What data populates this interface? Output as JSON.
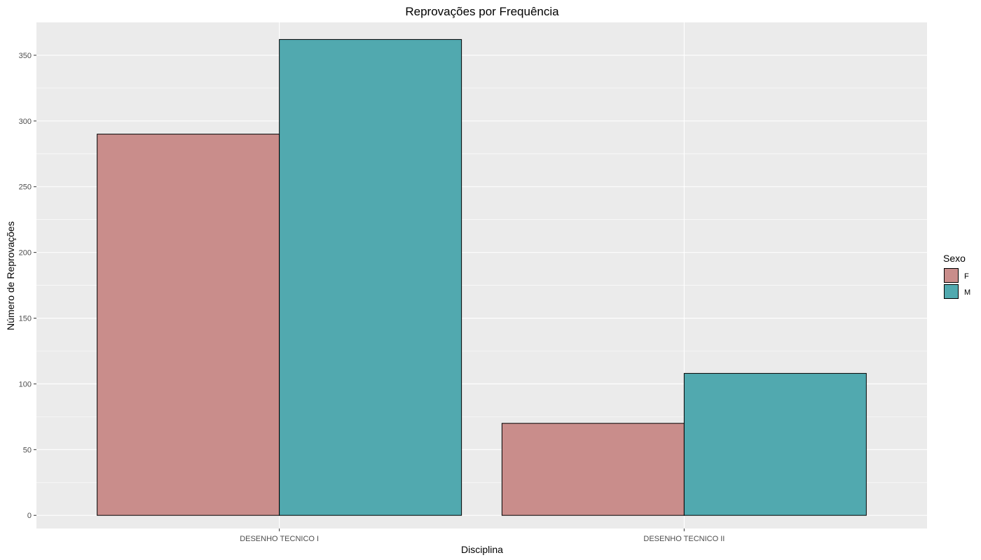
{
  "chart_data": {
    "type": "bar",
    "title": "Reprovações por Frequência",
    "xlabel": "Disciplina",
    "ylabel": "Número de Reprovações",
    "categories": [
      "DESENHO TECNICO I",
      "DESENHO TECNICO II"
    ],
    "series": [
      {
        "name": "F",
        "values": [
          290,
          70
        ],
        "color": "#c98d8b"
      },
      {
        "name": "M",
        "values": [
          362,
          108
        ],
        "color": "#51a9af"
      }
    ],
    "ylim": [
      -10,
      375
    ],
    "yticks": [
      0,
      50,
      100,
      150,
      200,
      250,
      300,
      350
    ],
    "yticks_labels": [
      "0",
      "50",
      "100",
      "150",
      "200",
      "250",
      "300",
      "350"
    ],
    "grid": true,
    "legend": {
      "title": "Sexo",
      "position": "right"
    },
    "panel_color": "#ebebeb",
    "grid_color": "#ffffff",
    "bar_border_color": "#000000"
  }
}
